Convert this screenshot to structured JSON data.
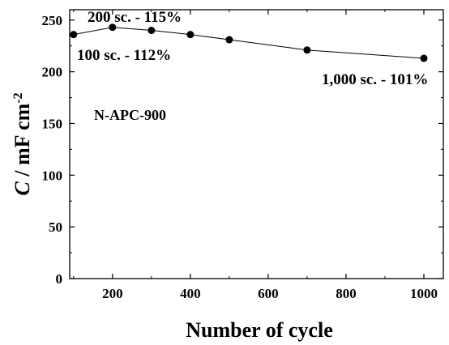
{
  "chart_data": {
    "type": "line",
    "xlabel": "Number of cycle",
    "ylabel": {
      "var": "C",
      "rest": " / mF cm",
      "sup": "-2"
    },
    "xlim": [
      90,
      1050
    ],
    "ylim": [
      0,
      260
    ],
    "xticks": [
      200,
      400,
      600,
      800,
      1000
    ],
    "xtick_labels": [
      "200",
      "400",
      "600",
      "800",
      "1000"
    ],
    "yticks": [
      0,
      50,
      100,
      150,
      200,
      250
    ],
    "ytick_labels": [
      "0",
      "50",
      "100",
      "150",
      "200",
      "250"
    ],
    "grid": false,
    "series": [
      {
        "x": [
          100,
          200,
          300,
          400,
          500,
          700,
          1000
        ],
        "y": [
          236,
          243,
          240,
          236,
          231,
          221,
          213
        ],
        "color": "#000000"
      }
    ],
    "sample_label": "N-APC-900",
    "annotations": [
      {
        "text": "200 sc. - 115%",
        "x": 200,
        "y": 243
      },
      {
        "text": "100 sc. - 112%",
        "x": 100,
        "y": 236
      },
      {
        "text": "1,000 sc. - 101%",
        "x": 1000,
        "y": 213
      }
    ]
  }
}
